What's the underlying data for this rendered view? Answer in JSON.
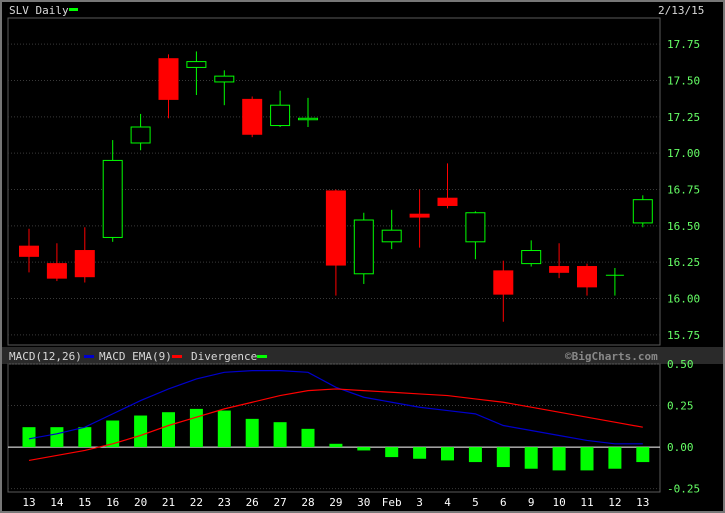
{
  "header": {
    "symbol_label": "SLV Daily",
    "date_label": "2/13/15",
    "watermark": "©BigCharts.com"
  },
  "macd_header": {
    "macd_label": "MACD(12,26)",
    "ema_label": "MACD EMA(9)",
    "divergence_label": "Divergence"
  },
  "colors": {
    "background": "#000000",
    "up_candle": "#00ff00",
    "down_candle": "#ff0000",
    "macd_line": "#0000cc",
    "ema_line": "#ff0000",
    "divergence_bar": "#00ff00",
    "axis_text": "#66ff66",
    "date_text": "#ffffff"
  },
  "chart_data": [
    {
      "type": "candlestick",
      "title": "SLV Daily",
      "date": "2/13/15",
      "yticks": [
        17.75,
        17.5,
        17.25,
        17.0,
        16.75,
        16.5,
        16.25,
        16.0,
        15.75
      ],
      "ytick_labels": [
        "17.75",
        "17.50",
        "17.25",
        "17.00",
        "16.75",
        "16.50",
        "16.25",
        "16.00",
        "15.75"
      ],
      "ylim": [
        15.68,
        17.93
      ],
      "x_labels": [
        "13",
        "14",
        "15",
        "16",
        "20",
        "21",
        "22",
        "23",
        "26",
        "27",
        "28",
        "29",
        "30",
        "Feb",
        "3",
        "4",
        "5",
        "6",
        "9",
        "10",
        "11",
        "12",
        "13"
      ],
      "candles": [
        {
          "open": 16.36,
          "high": 16.48,
          "low": 16.18,
          "close": 16.29
        },
        {
          "open": 16.24,
          "high": 16.38,
          "low": 16.12,
          "close": 16.14
        },
        {
          "open": 16.33,
          "high": 16.49,
          "low": 16.11,
          "close": 16.15
        },
        {
          "open": 16.42,
          "high": 17.09,
          "low": 16.39,
          "close": 16.95
        },
        {
          "open": 17.07,
          "high": 17.27,
          "low": 17.02,
          "close": 17.18
        },
        {
          "open": 17.65,
          "high": 17.68,
          "low": 17.24,
          "close": 17.37
        },
        {
          "open": 17.59,
          "high": 17.7,
          "low": 17.4,
          "close": 17.63
        },
        {
          "open": 17.49,
          "high": 17.57,
          "low": 17.33,
          "close": 17.53
        },
        {
          "open": 17.37,
          "high": 17.39,
          "low": 17.11,
          "close": 17.13
        },
        {
          "open": 17.19,
          "high": 17.43,
          "low": 17.18,
          "close": 17.33
        },
        {
          "open": 17.23,
          "high": 17.38,
          "low": 17.18,
          "close": 17.24
        },
        {
          "open": 16.74,
          "high": 16.75,
          "low": 16.02,
          "close": 16.23
        },
        {
          "open": 16.17,
          "high": 16.59,
          "low": 16.1,
          "close": 16.54
        },
        {
          "open": 16.39,
          "high": 16.61,
          "low": 16.34,
          "close": 16.47
        },
        {
          "open": 16.58,
          "high": 16.75,
          "low": 16.35,
          "close": 16.56
        },
        {
          "open": 16.69,
          "high": 16.93,
          "low": 16.62,
          "close": 16.64
        },
        {
          "open": 16.39,
          "high": 16.6,
          "low": 16.27,
          "close": 16.59
        },
        {
          "open": 16.19,
          "high": 16.26,
          "low": 15.84,
          "close": 16.03
        },
        {
          "open": 16.24,
          "high": 16.4,
          "low": 16.22,
          "close": 16.33
        },
        {
          "open": 16.22,
          "high": 16.38,
          "low": 16.14,
          "close": 16.18
        },
        {
          "open": 16.22,
          "high": 16.24,
          "low": 16.02,
          "close": 16.08
        },
        {
          "open": 16.16,
          "high": 16.21,
          "low": 16.02,
          "close": 16.16
        },
        {
          "open": 16.52,
          "high": 16.71,
          "low": 16.49,
          "close": 16.68
        }
      ]
    },
    {
      "type": "line+bar",
      "title": "MACD(12,26)",
      "yticks": [
        0.5,
        0.25,
        0.0,
        -0.25
      ],
      "ytick_labels": [
        "0.50",
        "0.25",
        "0.00",
        "-0.25"
      ],
      "ylim": [
        -0.27,
        0.5
      ],
      "x_labels": [
        "13",
        "14",
        "15",
        "16",
        "20",
        "21",
        "22",
        "23",
        "26",
        "27",
        "28",
        "29",
        "30",
        "Feb",
        "3",
        "4",
        "5",
        "6",
        "9",
        "10",
        "11",
        "12",
        "13"
      ],
      "series": [
        {
          "name": "MACD(12,26)",
          "kind": "line",
          "values": [
            0.05,
            0.08,
            0.12,
            0.2,
            0.28,
            0.35,
            0.41,
            0.45,
            0.46,
            0.46,
            0.45,
            0.36,
            0.3,
            0.27,
            0.24,
            0.22,
            0.2,
            0.13,
            0.1,
            0.07,
            0.04,
            0.02,
            0.02
          ]
        },
        {
          "name": "MACD EMA(9)",
          "kind": "line",
          "values": [
            -0.08,
            -0.05,
            -0.02,
            0.02,
            0.07,
            0.13,
            0.18,
            0.23,
            0.27,
            0.31,
            0.34,
            0.35,
            0.34,
            0.33,
            0.32,
            0.31,
            0.29,
            0.27,
            0.24,
            0.21,
            0.18,
            0.15,
            0.12
          ]
        },
        {
          "name": "Divergence",
          "kind": "bar",
          "values": [
            0.12,
            0.12,
            0.12,
            0.16,
            0.19,
            0.21,
            0.23,
            0.22,
            0.17,
            0.15,
            0.11,
            0.02,
            -0.02,
            -0.06,
            -0.07,
            -0.08,
            -0.09,
            -0.12,
            -0.13,
            -0.14,
            -0.14,
            -0.13,
            -0.09
          ]
        }
      ]
    }
  ]
}
